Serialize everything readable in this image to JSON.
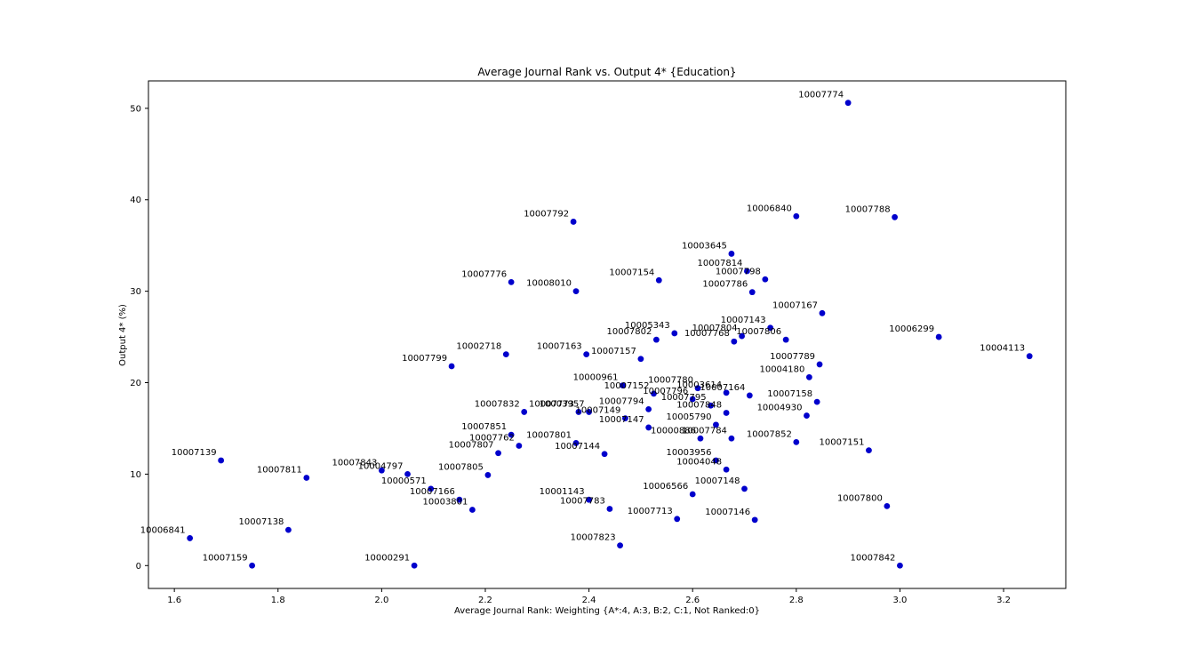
{
  "chart_data": {
    "type": "scatter",
    "title": "Average Journal Rank vs. Output 4* {Education}",
    "xlabel": "Average Journal Rank:  Weighting {A*:4, A:3, B:2, C:1, Not Ranked:0}",
    "ylabel": "Output 4* (%)",
    "xlim": [
      1.55,
      3.32
    ],
    "ylim": [
      -2.5,
      53
    ],
    "xticks": [
      "1.6",
      "1.8",
      "2.0",
      "2.2",
      "2.4",
      "2.6",
      "2.8",
      "3.0",
      "3.2"
    ],
    "yticks": [
      "0",
      "10",
      "20",
      "30",
      "40",
      "50"
    ],
    "grid": false,
    "marker_color": "#0000cc",
    "points": [
      {
        "label": "10007774",
        "x": 2.9,
        "y": 50.6
      },
      {
        "label": "10007792",
        "x": 2.37,
        "y": 37.6
      },
      {
        "label": "10006840",
        "x": 2.8,
        "y": 38.2
      },
      {
        "label": "10007788",
        "x": 2.99,
        "y": 38.1
      },
      {
        "label": "10003645",
        "x": 2.675,
        "y": 34.1
      },
      {
        "label": "10007814",
        "x": 2.705,
        "y": 32.2
      },
      {
        "label": "10007798",
        "x": 2.74,
        "y": 31.3
      },
      {
        "label": "10007786",
        "x": 2.715,
        "y": 29.9
      },
      {
        "label": "10007776",
        "x": 2.25,
        "y": 31.0
      },
      {
        "label": "10008010",
        "x": 2.375,
        "y": 30.0
      },
      {
        "label": "10007154",
        "x": 2.535,
        "y": 31.2
      },
      {
        "label": "10007167",
        "x": 2.85,
        "y": 27.6
      },
      {
        "label": "10007143",
        "x": 2.75,
        "y": 26.0
      },
      {
        "label": "10005343",
        "x": 2.565,
        "y": 25.4
      },
      {
        "label": "10007804",
        "x": 2.695,
        "y": 25.1
      },
      {
        "label": "10007768",
        "x": 2.68,
        "y": 24.5
      },
      {
        "label": "10007806",
        "x": 2.78,
        "y": 24.7
      },
      {
        "label": "10007802",
        "x": 2.53,
        "y": 24.7
      },
      {
        "label": "10006299",
        "x": 3.075,
        "y": 25.0
      },
      {
        "label": "10004113",
        "x": 3.25,
        "y": 22.9
      },
      {
        "label": "10002718",
        "x": 2.24,
        "y": 23.1
      },
      {
        "label": "10007163",
        "x": 2.395,
        "y": 23.1
      },
      {
        "label": "10007157",
        "x": 2.5,
        "y": 22.6
      },
      {
        "label": "10007799",
        "x": 2.135,
        "y": 21.8
      },
      {
        "label": "10007789",
        "x": 2.845,
        "y": 22.0
      },
      {
        "label": "10004180",
        "x": 2.825,
        "y": 20.6
      },
      {
        "label": "10000961",
        "x": 2.465,
        "y": 19.7
      },
      {
        "label": "10007152",
        "x": 2.525,
        "y": 18.8
      },
      {
        "label": "10007780",
        "x": 2.61,
        "y": 19.4
      },
      {
        "label": "10003614",
        "x": 2.665,
        "y": 18.9
      },
      {
        "label": "10007164",
        "x": 2.71,
        "y": 18.6
      },
      {
        "label": "10007796",
        "x": 2.6,
        "y": 18.2
      },
      {
        "label": "10007795",
        "x": 2.635,
        "y": 17.5
      },
      {
        "label": "10007158",
        "x": 2.84,
        "y": 17.9
      },
      {
        "label": "10007794",
        "x": 2.515,
        "y": 17.1
      },
      {
        "label": "10007848",
        "x": 2.665,
        "y": 16.7
      },
      {
        "label": "10004930",
        "x": 2.82,
        "y": 16.4
      },
      {
        "label": "10007832",
        "x": 2.275,
        "y": 16.8
      },
      {
        "label": "10007773",
        "x": 2.38,
        "y": 16.8
      },
      {
        "label": "10003957",
        "x": 2.4,
        "y": 16.8
      },
      {
        "label": "10007149",
        "x": 2.47,
        "y": 16.1
      },
      {
        "label": "10005790",
        "x": 2.645,
        "y": 15.4
      },
      {
        "label": "10000886",
        "x": 2.615,
        "y": 13.9
      },
      {
        "label": "10007784",
        "x": 2.675,
        "y": 13.9
      },
      {
        "label": "10007852",
        "x": 2.8,
        "y": 13.5
      },
      {
        "label": "10007151",
        "x": 2.94,
        "y": 12.6
      },
      {
        "label": "10007851",
        "x": 2.25,
        "y": 14.3
      },
      {
        "label": "10007801",
        "x": 2.375,
        "y": 13.4
      },
      {
        "label": "10007762",
        "x": 2.265,
        "y": 13.1
      },
      {
        "label": "10007807",
        "x": 2.225,
        "y": 12.3
      },
      {
        "label": "10007144",
        "x": 2.43,
        "y": 12.2
      },
      {
        "label": "10007147",
        "x": 2.515,
        "y": 15.1
      },
      {
        "label": "10003956",
        "x": 2.645,
        "y": 11.5
      },
      {
        "label": "10004048",
        "x": 2.665,
        "y": 10.5
      },
      {
        "label": "10007139",
        "x": 1.69,
        "y": 11.5
      },
      {
        "label": "10007811",
        "x": 1.855,
        "y": 9.6
      },
      {
        "label": "10007843",
        "x": 2.0,
        "y": 10.4
      },
      {
        "label": "10004797",
        "x": 2.05,
        "y": 10.0
      },
      {
        "label": "10000571",
        "x": 2.095,
        "y": 8.4
      },
      {
        "label": "10007805",
        "x": 2.205,
        "y": 9.9
      },
      {
        "label": "10007166",
        "x": 2.15,
        "y": 7.2
      },
      {
        "label": "10003801",
        "x": 2.175,
        "y": 6.1
      },
      {
        "label": "10001143",
        "x": 2.4,
        "y": 7.2
      },
      {
        "label": "10007783",
        "x": 2.44,
        "y": 6.2
      },
      {
        "label": "10007148",
        "x": 2.7,
        "y": 8.4
      },
      {
        "label": "10006566",
        "x": 2.6,
        "y": 7.8
      },
      {
        "label": "10007713",
        "x": 2.57,
        "y": 5.1
      },
      {
        "label": "10007146",
        "x": 2.72,
        "y": 5.0
      },
      {
        "label": "10007800",
        "x": 2.975,
        "y": 6.5
      },
      {
        "label": "10006841",
        "x": 1.63,
        "y": 3.0
      },
      {
        "label": "10007138",
        "x": 1.82,
        "y": 3.9
      },
      {
        "label": "10007823",
        "x": 2.46,
        "y": 2.2
      },
      {
        "label": "10007159",
        "x": 1.75,
        "y": 0.0
      },
      {
        "label": "10000291",
        "x": 2.063,
        "y": 0.0
      },
      {
        "label": "10007842",
        "x": 3.0,
        "y": 0.0
      }
    ]
  }
}
